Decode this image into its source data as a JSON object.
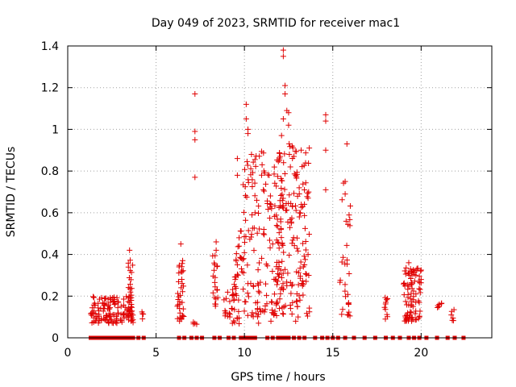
{
  "chart_data": {
    "type": "scatter",
    "title": "Day 049 of 2023, SRMTID for receiver mac1",
    "xlabel": "GPS time / hours",
    "ylabel": "SRMTID / TECUs",
    "xlim": [
      0,
      24
    ],
    "ylim": [
      0,
      1.4
    ],
    "xticks": [
      "0",
      "5",
      "10",
      "15",
      "20"
    ],
    "xtick_values": [
      0,
      5,
      10,
      15,
      20
    ],
    "yticks": [
      "0",
      "0.2",
      "0.4",
      "0.6",
      "0.8",
      "1",
      "1.2",
      "1.4"
    ],
    "ytick_values": [
      0,
      0.2,
      0.4,
      0.6,
      0.8,
      1.0,
      1.2,
      1.4
    ],
    "grid": true,
    "marker": "+",
    "series_color": "#e00000",
    "zero_markers": {
      "y": 0,
      "x": [
        1.3,
        1.5,
        1.7,
        1.9,
        2.1,
        2.3,
        2.5,
        2.7,
        2.9,
        3.1,
        3.3,
        3.5,
        3.7,
        4.0,
        4.3,
        6.3,
        6.6,
        7.0,
        7.3,
        7.6,
        8.3,
        8.6,
        9.1,
        9.4,
        9.8,
        10.0,
        10.2,
        10.4,
        10.6,
        11.3,
        11.6,
        11.9,
        12.1,
        12.3,
        12.5,
        12.8,
        13.1,
        13.4,
        14.0,
        14.4,
        14.7,
        15.0,
        15.3,
        15.7,
        16.2,
        16.8,
        17.4,
        18.0,
        18.4,
        18.8,
        19.3,
        19.6,
        19.9,
        20.3,
        20.9,
        21.5,
        21.9,
        22.4
      ]
    },
    "clusters": [
      {
        "x": [
          1.3,
          3.7
        ],
        "y": [
          0.07,
          0.2
        ],
        "n": 130
      },
      {
        "x": [
          3.4,
          3.7
        ],
        "y": [
          0.08,
          0.38
        ],
        "n": 25
      },
      {
        "x": [
          4.2,
          4.4
        ],
        "y": [
          0.07,
          0.13
        ],
        "n": 4
      },
      {
        "x": [
          6.2,
          6.6
        ],
        "y": [
          0.08,
          0.38
        ],
        "n": 35
      },
      {
        "x": [
          7.0,
          7.3
        ],
        "y": [
          0.06,
          0.09
        ],
        "n": 4
      },
      {
        "x": [
          8.2,
          8.5
        ],
        "y": [
          0.15,
          0.45
        ],
        "n": 20
      },
      {
        "x": [
          8.8,
          9.3
        ],
        "y": [
          0.1,
          0.22
        ],
        "n": 12
      },
      {
        "x": [
          9.3,
          9.7
        ],
        "y": [
          0.05,
          0.3
        ],
        "n": 25
      },
      {
        "x": [
          9.5,
          9.9
        ],
        "y": [
          0.3,
          0.55
        ],
        "n": 12
      },
      {
        "x": [
          9.9,
          12.2
        ],
        "y": [
          0.1,
          0.9
        ],
        "n": 150
      },
      {
        "x": [
          11.8,
          13.7
        ],
        "y": [
          0.1,
          0.95
        ],
        "n": 150
      },
      {
        "x": [
          15.4,
          16.0
        ],
        "y": [
          0.1,
          0.75
        ],
        "n": 30
      },
      {
        "x": [
          17.9,
          18.2
        ],
        "y": [
          0.08,
          0.2
        ],
        "n": 10
      },
      {
        "x": [
          19.0,
          20.0
        ],
        "y": [
          0.08,
          0.34
        ],
        "n": 85
      },
      {
        "x": [
          20.9,
          21.2
        ],
        "y": [
          0.13,
          0.17
        ],
        "n": 6
      },
      {
        "x": [
          21.6,
          21.9
        ],
        "y": [
          0.08,
          0.15
        ],
        "n": 6
      }
    ],
    "points": [
      [
        3.5,
        0.42
      ],
      [
        6.4,
        0.45
      ],
      [
        7.2,
        1.17
      ],
      [
        7.2,
        0.99
      ],
      [
        7.2,
        0.95
      ],
      [
        7.2,
        0.77
      ],
      [
        10.1,
        1.12
      ],
      [
        10.1,
        1.05
      ],
      [
        10.2,
        0.98
      ],
      [
        10.2,
        1.0
      ],
      [
        10.4,
        0.88
      ],
      [
        9.6,
        0.86
      ],
      [
        9.6,
        0.78
      ],
      [
        11.0,
        0.83
      ],
      [
        11.1,
        0.8
      ],
      [
        11.4,
        0.78
      ],
      [
        12.2,
        1.38
      ],
      [
        12.2,
        1.35
      ],
      [
        12.3,
        1.21
      ],
      [
        12.3,
        1.17
      ],
      [
        12.4,
        1.09
      ],
      [
        12.5,
        1.08
      ],
      [
        12.2,
        1.05
      ],
      [
        12.5,
        1.02
      ],
      [
        12.1,
        0.97
      ],
      [
        12.7,
        0.92
      ],
      [
        14.6,
        1.07
      ],
      [
        14.6,
        1.04
      ],
      [
        14.6,
        0.9
      ],
      [
        14.6,
        0.71
      ],
      [
        15.8,
        0.93
      ],
      [
        15.7,
        0.75
      ],
      [
        15.7,
        0.69
      ],
      [
        12.9,
        0.78
      ],
      [
        13.1,
        0.72
      ],
      [
        13.3,
        0.63
      ],
      [
        13.6,
        0.67
      ],
      [
        11.5,
        0.64
      ],
      [
        11.1,
        0.52
      ],
      [
        11.6,
        0.45
      ],
      [
        10.6,
        0.6
      ],
      [
        9.7,
        0.48
      ],
      [
        9.7,
        0.44
      ],
      [
        12.6,
        0.82
      ],
      [
        12.8,
        0.87
      ],
      [
        10.7,
        0.66
      ],
      [
        11.9,
        0.33
      ],
      [
        13.6,
        0.4
      ],
      [
        13.4,
        0.35
      ],
      [
        8.4,
        0.46
      ],
      [
        8.4,
        0.42
      ],
      [
        9.6,
        0.35
      ],
      [
        9.4,
        0.18
      ],
      [
        8.9,
        0.13
      ],
      [
        10.2,
        0.26
      ],
      [
        11.7,
        0.21
      ],
      [
        12.4,
        0.25
      ],
      [
        13.0,
        0.15
      ],
      [
        12.9,
        0.08
      ],
      [
        11.5,
        0.08
      ],
      [
        10.8,
        0.07
      ],
      [
        19.3,
        0.36
      ],
      [
        19.4,
        0.33
      ],
      [
        19.7,
        0.3
      ],
      [
        20.0,
        0.28
      ],
      [
        19.2,
        0.09
      ],
      [
        19.9,
        0.1
      ]
    ]
  }
}
